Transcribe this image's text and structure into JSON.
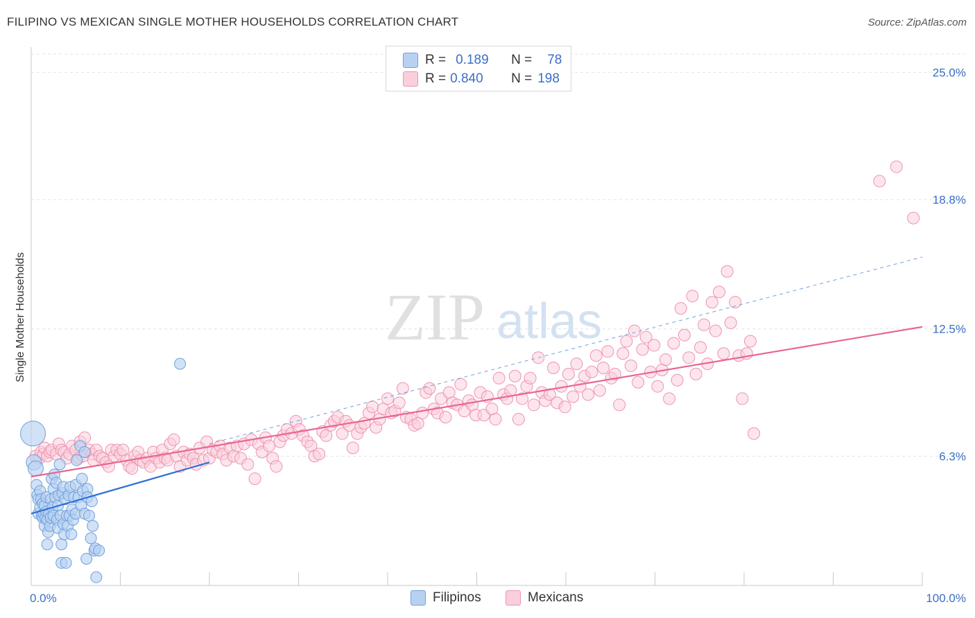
{
  "title": "FILIPINO VS MEXICAN SINGLE MOTHER HOUSEHOLDS CORRELATION CHART",
  "source": "Source: ZipAtlas.com",
  "watermark": {
    "zip": "ZIP",
    "atlas": "atlas"
  },
  "legend": {
    "r_label": "R =",
    "n_label": "N =",
    "rows": [
      {
        "r": "0.189",
        "n": "78",
        "color": "#9cc0ec",
        "border": "#6f9fdc"
      },
      {
        "r": "0.840",
        "n": "198",
        "color": "#f7bccf",
        "border": "#ee93b0"
      }
    ]
  },
  "bottom_legend": [
    {
      "label": "Filipinos",
      "color": "#b9d1f1",
      "border": "#6f9fdc"
    },
    {
      "label": "Mexicans",
      "color": "#f9cfdc",
      "border": "#ee93b0"
    }
  ],
  "chart_data": {
    "type": "scatter",
    "title": "FILIPINO VS MEXICAN SINGLE MOTHER HOUSEHOLDS CORRELATION CHART",
    "xlabel": "",
    "ylabel": "Single Mother Households",
    "xlim": [
      0,
      100
    ],
    "ylim": [
      0,
      26.5
    ],
    "x_tick_labels": [
      "0.0%",
      "100.0%"
    ],
    "y_ticks": [
      6.3,
      12.5,
      18.8,
      25.0
    ],
    "y_tick_labels": [
      "6.3%",
      "12.5%",
      "18.8%",
      "25.0%"
    ],
    "grid": true,
    "series": [
      {
        "name": "Filipinos",
        "color": "#6f9fdc",
        "fill": "#b9d1f1",
        "trend": {
          "x0": 0,
          "y0": 3.5,
          "x1": 20,
          "y1": 6.0,
          "color": "#2f6fd6"
        },
        "points": [
          [
            0.2,
            7.4
          ],
          [
            0.3,
            6.0
          ],
          [
            0.5,
            5.7
          ],
          [
            0.6,
            4.9
          ],
          [
            0.7,
            4.4
          ],
          [
            0.8,
            4.2
          ],
          [
            0.8,
            3.5
          ],
          [
            1.0,
            4.6
          ],
          [
            1.0,
            3.8
          ],
          [
            1.1,
            4.2
          ],
          [
            1.2,
            3.4
          ],
          [
            1.3,
            4.0
          ],
          [
            1.3,
            3.3
          ],
          [
            1.4,
            3.5
          ],
          [
            1.5,
            3.9
          ],
          [
            1.5,
            2.9
          ],
          [
            1.6,
            3.3
          ],
          [
            1.7,
            4.3
          ],
          [
            1.7,
            3.6
          ],
          [
            1.8,
            3.2
          ],
          [
            1.8,
            2.0
          ],
          [
            1.9,
            2.6
          ],
          [
            2.0,
            3.5
          ],
          [
            2.1,
            2.9
          ],
          [
            2.2,
            4.2
          ],
          [
            2.2,
            3.3
          ],
          [
            2.3,
            5.2
          ],
          [
            2.4,
            3.8
          ],
          [
            2.5,
            4.7
          ],
          [
            2.5,
            3.4
          ],
          [
            2.6,
            5.4
          ],
          [
            2.7,
            4.3
          ],
          [
            2.8,
            5.0
          ],
          [
            2.9,
            3.2
          ],
          [
            3.0,
            2.8
          ],
          [
            3.0,
            3.9
          ],
          [
            3.1,
            4.4
          ],
          [
            3.2,
            5.9
          ],
          [
            3.3,
            3.4
          ],
          [
            3.4,
            2.0
          ],
          [
            3.4,
            1.1
          ],
          [
            3.5,
            4.5
          ],
          [
            3.6,
            4.8
          ],
          [
            3.6,
            3.0
          ],
          [
            3.7,
            2.5
          ],
          [
            3.8,
            4.2
          ],
          [
            3.9,
            1.1
          ],
          [
            4.0,
            3.4
          ],
          [
            4.1,
            2.9
          ],
          [
            4.2,
            4.4
          ],
          [
            4.3,
            3.4
          ],
          [
            4.4,
            4.8
          ],
          [
            4.5,
            2.5
          ],
          [
            4.6,
            3.7
          ],
          [
            4.7,
            3.2
          ],
          [
            4.8,
            4.3
          ],
          [
            5.0,
            4.9
          ],
          [
            5.0,
            3.5
          ],
          [
            5.1,
            6.1
          ],
          [
            5.3,
            4.3
          ],
          [
            5.5,
            6.8
          ],
          [
            5.6,
            3.9
          ],
          [
            5.7,
            5.2
          ],
          [
            5.8,
            4.6
          ],
          [
            6.0,
            6.5
          ],
          [
            6.0,
            3.5
          ],
          [
            6.2,
            1.3
          ],
          [
            6.3,
            4.7
          ],
          [
            6.3,
            4.3
          ],
          [
            6.5,
            3.4
          ],
          [
            6.7,
            2.3
          ],
          [
            6.8,
            4.1
          ],
          [
            6.9,
            2.9
          ],
          [
            7.1,
            1.7
          ],
          [
            7.2,
            1.8
          ],
          [
            7.3,
            0.4
          ],
          [
            7.6,
            1.7
          ],
          [
            16.7,
            10.8
          ]
        ]
      },
      {
        "name": "Mexicans",
        "color": "#ee93b0",
        "fill": "#f9cfdc",
        "trend": {
          "x0": 0,
          "y0": 5.3,
          "x1": 100,
          "y1": 12.6,
          "color": "#e86690"
        },
        "trend_dash": {
          "x0": 20,
          "y0": 6.9,
          "x1": 100,
          "y1": 16.0,
          "color": "#6f9fdc"
        },
        "points": [
          [
            0.5,
            6.3
          ],
          [
            0.9,
            6.2
          ],
          [
            1.1,
            6.5
          ],
          [
            1.4,
            6.4
          ],
          [
            1.5,
            6.7
          ],
          [
            1.8,
            6.3
          ],
          [
            2.1,
            6.5
          ],
          [
            2.3,
            6.6
          ],
          [
            2.8,
            6.4
          ],
          [
            3.1,
            6.9
          ],
          [
            3.4,
            6.6
          ],
          [
            3.7,
            6.5
          ],
          [
            4.0,
            6.2
          ],
          [
            4.3,
            6.4
          ],
          [
            4.6,
            6.8
          ],
          [
            5.0,
            6.6
          ],
          [
            5.3,
            6.2
          ],
          [
            5.5,
            7.0
          ],
          [
            5.8,
            6.3
          ],
          [
            6.0,
            7.2
          ],
          [
            6.5,
            6.6
          ],
          [
            6.8,
            6.4
          ],
          [
            7.0,
            6.1
          ],
          [
            7.3,
            6.6
          ],
          [
            7.7,
            6.3
          ],
          [
            8.0,
            6.2
          ],
          [
            8.4,
            6.0
          ],
          [
            8.7,
            5.8
          ],
          [
            9.0,
            6.6
          ],
          [
            9.3,
            6.3
          ],
          [
            9.6,
            6.6
          ],
          [
            10.0,
            6.4
          ],
          [
            10.3,
            6.6
          ],
          [
            10.7,
            6.1
          ],
          [
            11.0,
            5.8
          ],
          [
            11.3,
            5.7
          ],
          [
            11.6,
            6.3
          ],
          [
            12.0,
            6.5
          ],
          [
            12.3,
            6.1
          ],
          [
            12.6,
            6.0
          ],
          [
            13.0,
            6.2
          ],
          [
            13.4,
            5.8
          ],
          [
            13.7,
            6.5
          ],
          [
            14.0,
            6.2
          ],
          [
            14.4,
            6.0
          ],
          [
            14.7,
            6.6
          ],
          [
            15.0,
            6.2
          ],
          [
            15.3,
            6.1
          ],
          [
            15.6,
            6.9
          ],
          [
            16.0,
            7.1
          ],
          [
            16.3,
            6.3
          ],
          [
            16.7,
            5.8
          ],
          [
            17.1,
            6.5
          ],
          [
            17.5,
            6.1
          ],
          [
            17.8,
            6.4
          ],
          [
            18.2,
            6.2
          ],
          [
            18.5,
            5.9
          ],
          [
            18.9,
            6.7
          ],
          [
            19.3,
            6.1
          ],
          [
            19.7,
            7.0
          ],
          [
            20.0,
            6.2
          ],
          [
            20.4,
            6.6
          ],
          [
            20.8,
            6.5
          ],
          [
            21.2,
            6.8
          ],
          [
            21.5,
            6.4
          ],
          [
            21.9,
            6.1
          ],
          [
            22.3,
            6.7
          ],
          [
            22.7,
            6.3
          ],
          [
            23.1,
            6.8
          ],
          [
            23.5,
            6.2
          ],
          [
            23.9,
            6.9
          ],
          [
            24.3,
            5.9
          ],
          [
            24.7,
            7.1
          ],
          [
            25.1,
            5.2
          ],
          [
            25.5,
            6.9
          ],
          [
            25.9,
            6.5
          ],
          [
            26.3,
            7.2
          ],
          [
            26.7,
            6.8
          ],
          [
            27.1,
            6.2
          ],
          [
            27.5,
            5.8
          ],
          [
            27.9,
            7.0
          ],
          [
            28.3,
            7.3
          ],
          [
            28.7,
            7.6
          ],
          [
            29.2,
            7.4
          ],
          [
            29.7,
            8.0
          ],
          [
            30.1,
            7.6
          ],
          [
            30.5,
            7.3
          ],
          [
            31.0,
            7.0
          ],
          [
            31.4,
            6.8
          ],
          [
            31.8,
            6.3
          ],
          [
            32.3,
            6.4
          ],
          [
            32.7,
            7.5
          ],
          [
            33.1,
            7.3
          ],
          [
            33.6,
            7.8
          ],
          [
            34.0,
            8.0
          ],
          [
            34.4,
            8.2
          ],
          [
            34.9,
            7.4
          ],
          [
            35.3,
            8.0
          ],
          [
            35.7,
            7.8
          ],
          [
            36.1,
            6.7
          ],
          [
            36.6,
            7.4
          ],
          [
            37.0,
            7.7
          ],
          [
            37.4,
            7.9
          ],
          [
            37.9,
            8.4
          ],
          [
            38.3,
            8.7
          ],
          [
            38.7,
            7.7
          ],
          [
            39.1,
            8.1
          ],
          [
            39.5,
            8.6
          ],
          [
            40.0,
            9.1
          ],
          [
            40.4,
            8.4
          ],
          [
            40.8,
            8.5
          ],
          [
            41.3,
            8.9
          ],
          [
            41.7,
            9.6
          ],
          [
            42.1,
            8.2
          ],
          [
            42.6,
            8.1
          ],
          [
            43.0,
            7.8
          ],
          [
            43.4,
            7.9
          ],
          [
            43.9,
            8.4
          ],
          [
            44.3,
            9.4
          ],
          [
            44.7,
            9.6
          ],
          [
            45.2,
            8.6
          ],
          [
            45.6,
            8.4
          ],
          [
            46.0,
            9.1
          ],
          [
            46.5,
            8.2
          ],
          [
            46.9,
            9.4
          ],
          [
            47.3,
            8.9
          ],
          [
            47.8,
            8.8
          ],
          [
            48.2,
            9.8
          ],
          [
            48.6,
            8.5
          ],
          [
            49.1,
            9.0
          ],
          [
            49.5,
            8.8
          ],
          [
            49.9,
            8.3
          ],
          [
            50.4,
            9.4
          ],
          [
            50.8,
            8.3
          ],
          [
            51.2,
            9.2
          ],
          [
            51.7,
            8.6
          ],
          [
            52.1,
            8.1
          ],
          [
            52.5,
            10.1
          ],
          [
            53.0,
            9.3
          ],
          [
            53.4,
            9.1
          ],
          [
            53.8,
            9.5
          ],
          [
            54.3,
            10.2
          ],
          [
            54.7,
            8.1
          ],
          [
            55.1,
            9.1
          ],
          [
            55.6,
            9.7
          ],
          [
            56.0,
            10.1
          ],
          [
            56.4,
            8.8
          ],
          [
            56.9,
            11.1
          ],
          [
            57.3,
            9.4
          ],
          [
            57.7,
            9.0
          ],
          [
            58.2,
            9.3
          ],
          [
            58.6,
            10.6
          ],
          [
            59.0,
            8.9
          ],
          [
            59.5,
            9.7
          ],
          [
            59.9,
            8.7
          ],
          [
            60.3,
            10.3
          ],
          [
            60.8,
            9.2
          ],
          [
            61.2,
            10.8
          ],
          [
            61.6,
            9.7
          ],
          [
            62.1,
            10.2
          ],
          [
            62.5,
            9.3
          ],
          [
            62.9,
            10.4
          ],
          [
            63.4,
            11.2
          ],
          [
            63.8,
            9.5
          ],
          [
            64.2,
            10.6
          ],
          [
            64.7,
            11.4
          ],
          [
            65.1,
            10.1
          ],
          [
            65.5,
            10.3
          ],
          [
            66.0,
            8.8
          ],
          [
            66.4,
            11.3
          ],
          [
            66.8,
            11.9
          ],
          [
            67.3,
            10.7
          ],
          [
            67.7,
            12.4
          ],
          [
            68.1,
            9.9
          ],
          [
            68.6,
            11.5
          ],
          [
            69.0,
            12.1
          ],
          [
            69.5,
            10.4
          ],
          [
            69.9,
            11.7
          ],
          [
            70.3,
            9.7
          ],
          [
            70.8,
            10.5
          ],
          [
            71.2,
            11.0
          ],
          [
            71.6,
            9.1
          ],
          [
            72.1,
            11.8
          ],
          [
            72.5,
            10.0
          ],
          [
            72.9,
            13.5
          ],
          [
            73.3,
            12.2
          ],
          [
            73.8,
            11.1
          ],
          [
            74.2,
            14.1
          ],
          [
            74.6,
            10.3
          ],
          [
            75.1,
            11.6
          ],
          [
            75.5,
            12.7
          ],
          [
            75.9,
            10.8
          ],
          [
            76.4,
            13.8
          ],
          [
            76.8,
            12.4
          ],
          [
            77.2,
            14.3
          ],
          [
            77.7,
            11.3
          ],
          [
            78.1,
            15.3
          ],
          [
            78.5,
            12.8
          ],
          [
            79.0,
            13.8
          ],
          [
            79.4,
            11.2
          ],
          [
            79.8,
            9.1
          ],
          [
            80.3,
            11.3
          ],
          [
            80.7,
            11.9
          ],
          [
            81.1,
            7.4
          ],
          [
            95.2,
            19.7
          ],
          [
            97.1,
            20.4
          ],
          [
            99.0,
            17.9
          ]
        ]
      }
    ]
  }
}
